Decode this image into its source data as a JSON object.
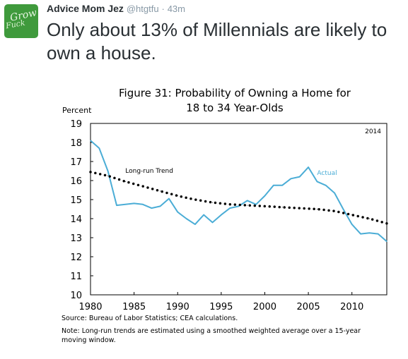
{
  "tweet": {
    "avatar_text_1": "Grow",
    "avatar_text_2": "Fuck",
    "author_name": "Advice Mom Jez",
    "author_handle": "@htgtfu",
    "separator": "·",
    "timestamp": "43m",
    "text": "Only about 13% of Millennials are likely to own a house."
  },
  "chart_data": {
    "type": "line",
    "title_line1": "Figure 31: Probability of Owning a Home for",
    "title_line2": "18 to 34 Year-Olds",
    "ylabel": "Percent",
    "annotation": "2014",
    "ylim": [
      10,
      19
    ],
    "xlim": [
      1980,
      2014
    ],
    "yticks": [
      10,
      11,
      12,
      13,
      14,
      15,
      16,
      17,
      18,
      19
    ],
    "xticks": [
      1980,
      1985,
      1990,
      1995,
      2000,
      2005,
      2010
    ],
    "series": [
      {
        "name": "Actual",
        "color": "#4badd6",
        "style": "solid",
        "x": [
          1980,
          1981,
          1982,
          1983,
          1984,
          1985,
          1986,
          1987,
          1988,
          1989,
          1990,
          1991,
          1992,
          1993,
          1994,
          1995,
          1996,
          1997,
          1998,
          1999,
          2000,
          2001,
          2002,
          2003,
          2004,
          2005,
          2006,
          2007,
          2008,
          2009,
          2010,
          2011,
          2012,
          2013,
          2014
        ],
        "y": [
          18.1,
          17.7,
          16.5,
          14.7,
          14.75,
          14.8,
          14.75,
          14.55,
          14.65,
          15.05,
          14.35,
          14.0,
          13.7,
          14.2,
          13.8,
          14.2,
          14.55,
          14.65,
          14.95,
          14.75,
          15.2,
          15.75,
          15.75,
          16.1,
          16.2,
          16.7,
          15.95,
          15.75,
          15.35,
          14.5,
          13.7,
          13.2,
          13.25,
          13.2,
          12.8
        ]
      },
      {
        "name": "Long-run Trend",
        "color": "#000000",
        "style": "dotted",
        "x": [
          1980,
          1982,
          1984,
          1986,
          1988,
          1990,
          1992,
          1994,
          1996,
          1998,
          2000,
          2002,
          2004,
          2006,
          2008,
          2010,
          2012,
          2014
        ],
        "y": [
          16.45,
          16.25,
          15.95,
          15.7,
          15.45,
          15.2,
          15.0,
          14.85,
          14.75,
          14.7,
          14.65,
          14.6,
          14.55,
          14.5,
          14.4,
          14.2,
          14.0,
          13.75
        ]
      }
    ],
    "source": "Source: Bureau of Labor Statistics; CEA calculations.",
    "note_line1": "Note: Long-run trends are estimated using a smoothed weighted average over a 15-year",
    "note_line2": "moving window."
  }
}
